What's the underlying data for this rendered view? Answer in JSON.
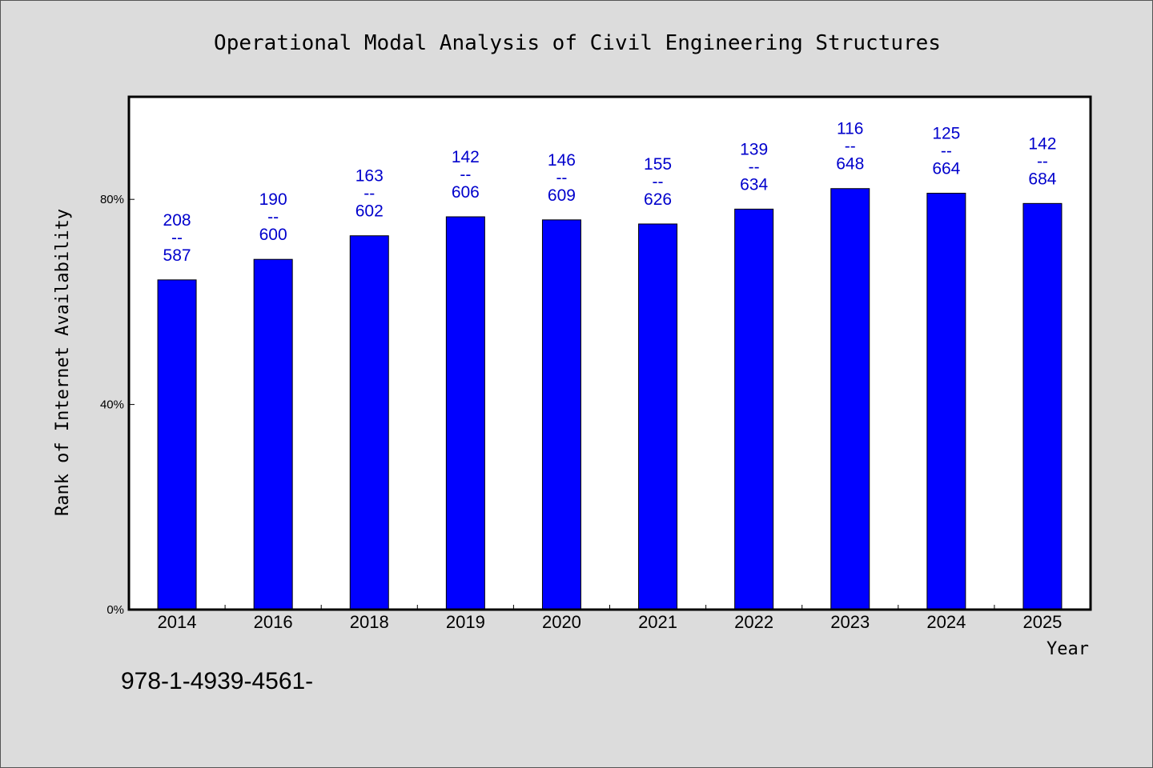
{
  "colors": {
    "background": "#dcdcdc",
    "plot_background": "#ffffff",
    "bar_fill": "#0000ff",
    "label_color": "#0000cc",
    "frame": "#000000"
  },
  "footer": {
    "isbn": "978-1-4939-4561-"
  },
  "chart_data": {
    "type": "bar",
    "title": "Operational Modal Analysis of Civil Engineering Structures",
    "xlabel": "Year",
    "ylabel": "Rank of Internet Availability",
    "ylim": [
      0,
      100
    ],
    "yticks": [
      {
        "value": 0,
        "label": "0%"
      },
      {
        "value": 40,
        "label": "40%"
      },
      {
        "value": 80,
        "label": "80%"
      }
    ],
    "grid": false,
    "categories": [
      "2014",
      "2016",
      "2018",
      "2019",
      "2020",
      "2021",
      "2022",
      "2023",
      "2024",
      "2025"
    ],
    "values": [
      64.3,
      68.3,
      72.9,
      76.6,
      76.0,
      75.2,
      78.1,
      82.1,
      81.2,
      79.2
    ],
    "data_labels": [
      {
        "top": "208",
        "sep": "--",
        "bottom": "587"
      },
      {
        "top": "190",
        "sep": "--",
        "bottom": "600"
      },
      {
        "top": "163",
        "sep": "--",
        "bottom": "602"
      },
      {
        "top": "142",
        "sep": "--",
        "bottom": "606"
      },
      {
        "top": "146",
        "sep": "--",
        "bottom": "609"
      },
      {
        "top": "155",
        "sep": "--",
        "bottom": "626"
      },
      {
        "top": "139",
        "sep": "--",
        "bottom": "634"
      },
      {
        "top": "116",
        "sep": "--",
        "bottom": "648"
      },
      {
        "top": "125",
        "sep": "--",
        "bottom": "664"
      },
      {
        "top": "142",
        "sep": "--",
        "bottom": "684"
      }
    ]
  }
}
